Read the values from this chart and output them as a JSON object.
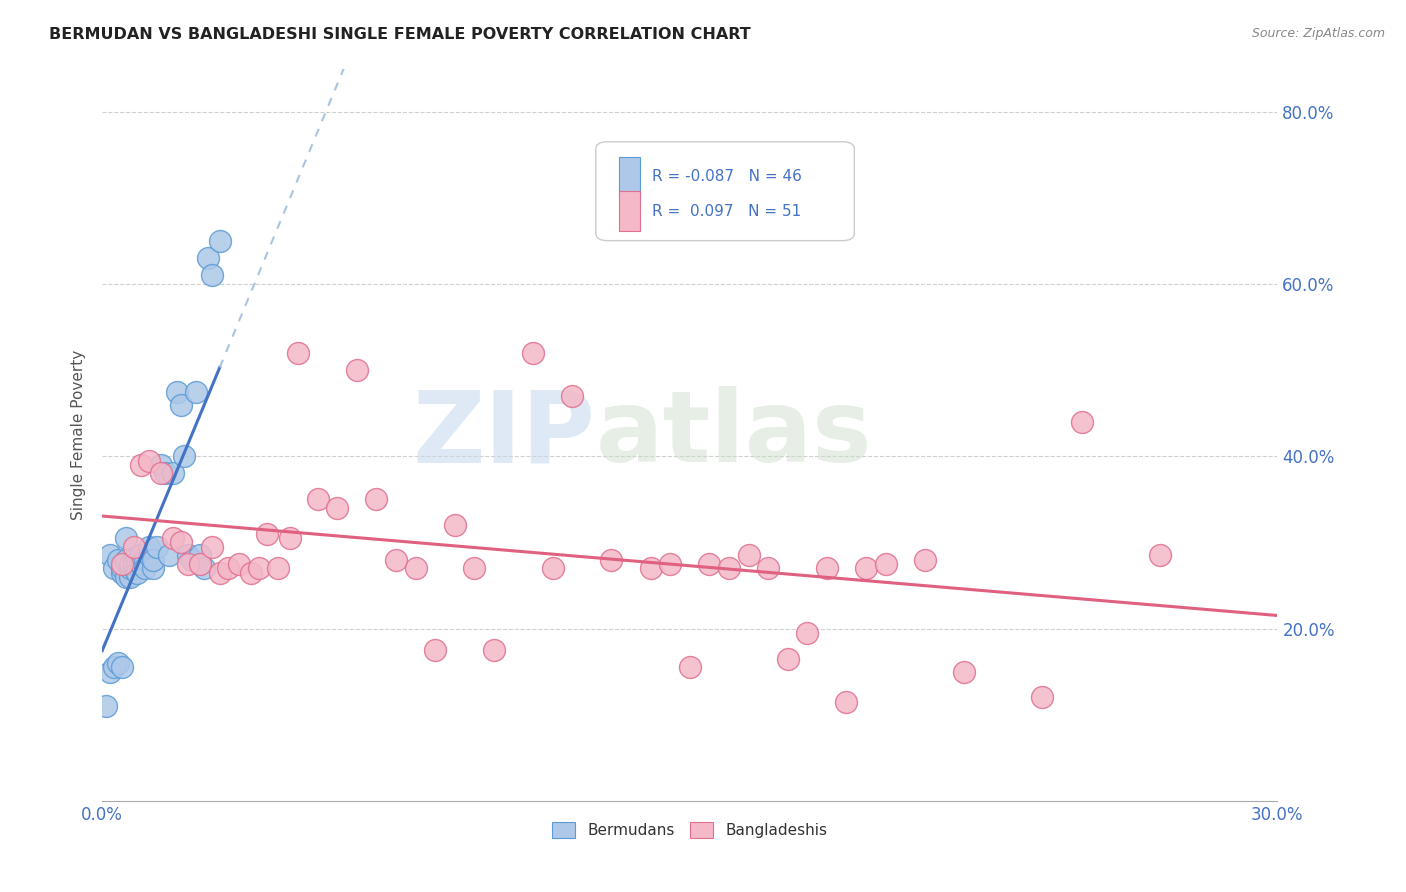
{
  "title": "BERMUDAN VS BANGLADESHI SINGLE FEMALE POVERTY CORRELATION CHART",
  "source": "Source: ZipAtlas.com",
  "ylabel": "Single Female Poverty",
  "xlim": [
    0.0,
    0.3
  ],
  "ylim": [
    0.0,
    0.85
  ],
  "xtick_labels": [
    "0.0%",
    "",
    "",
    "",
    "",
    "",
    "30.0%"
  ],
  "xtick_vals": [
    0.0,
    0.05,
    0.1,
    0.15,
    0.2,
    0.25,
    0.3
  ],
  "ytick_labels": [
    "20.0%",
    "40.0%",
    "60.0%",
    "80.0%"
  ],
  "ytick_vals": [
    0.2,
    0.4,
    0.6,
    0.8
  ],
  "bermuda_color": "#adc8e8",
  "bermuda_edge": "#5b9bd5",
  "bangladesh_color": "#f4b8c8",
  "bangladesh_edge": "#e07090",
  "trend_bermuda_solid_color": "#4472c4",
  "trend_bermuda_dashed_color": "#a8c4e0",
  "trend_bangladesh_color": "#e06080",
  "legend_R_bermuda": "-0.087",
  "legend_N_bermuda": "46",
  "legend_R_bangladesh": "0.097",
  "legend_N_bangladesh": "51",
  "bermuda_x": [
    0.001,
    0.002,
    0.002,
    0.003,
    0.003,
    0.004,
    0.004,
    0.005,
    0.005,
    0.005,
    0.006,
    0.006,
    0.006,
    0.007,
    0.007,
    0.007,
    0.008,
    0.008,
    0.008,
    0.009,
    0.009,
    0.01,
    0.01,
    0.01,
    0.011,
    0.011,
    0.012,
    0.012,
    0.013,
    0.013,
    0.014,
    0.015,
    0.016,
    0.017,
    0.018,
    0.019,
    0.02,
    0.021,
    0.022,
    0.023,
    0.024,
    0.025,
    0.026,
    0.027,
    0.028,
    0.03
  ],
  "bermuda_y": [
    0.11,
    0.285,
    0.15,
    0.27,
    0.155,
    0.16,
    0.28,
    0.155,
    0.265,
    0.27,
    0.28,
    0.26,
    0.305,
    0.26,
    0.27,
    0.275,
    0.27,
    0.28,
    0.275,
    0.275,
    0.265,
    0.275,
    0.285,
    0.275,
    0.28,
    0.27,
    0.285,
    0.295,
    0.27,
    0.28,
    0.295,
    0.39,
    0.38,
    0.285,
    0.38,
    0.475,
    0.46,
    0.4,
    0.285,
    0.28,
    0.475,
    0.285,
    0.27,
    0.63,
    0.61,
    0.65
  ],
  "bangladesh_x": [
    0.005,
    0.008,
    0.01,
    0.012,
    0.015,
    0.018,
    0.02,
    0.022,
    0.025,
    0.028,
    0.03,
    0.032,
    0.035,
    0.038,
    0.04,
    0.042,
    0.045,
    0.048,
    0.05,
    0.055,
    0.06,
    0.065,
    0.07,
    0.075,
    0.08,
    0.085,
    0.09,
    0.095,
    0.1,
    0.11,
    0.115,
    0.12,
    0.13,
    0.14,
    0.145,
    0.15,
    0.155,
    0.16,
    0.165,
    0.17,
    0.175,
    0.18,
    0.185,
    0.19,
    0.195,
    0.2,
    0.21,
    0.22,
    0.24,
    0.25,
    0.27
  ],
  "bangladesh_y": [
    0.275,
    0.295,
    0.39,
    0.395,
    0.38,
    0.305,
    0.3,
    0.275,
    0.275,
    0.295,
    0.265,
    0.27,
    0.275,
    0.265,
    0.27,
    0.31,
    0.27,
    0.305,
    0.52,
    0.35,
    0.34,
    0.5,
    0.35,
    0.28,
    0.27,
    0.175,
    0.32,
    0.27,
    0.175,
    0.52,
    0.27,
    0.47,
    0.28,
    0.27,
    0.275,
    0.155,
    0.275,
    0.27,
    0.285,
    0.27,
    0.165,
    0.195,
    0.27,
    0.115,
    0.27,
    0.275,
    0.28,
    0.15,
    0.12,
    0.44,
    0.285
  ],
  "watermark_zip": "ZIP",
  "watermark_atlas": "atlas",
  "background_color": "#ffffff",
  "grid_color": "#d0d0d0"
}
